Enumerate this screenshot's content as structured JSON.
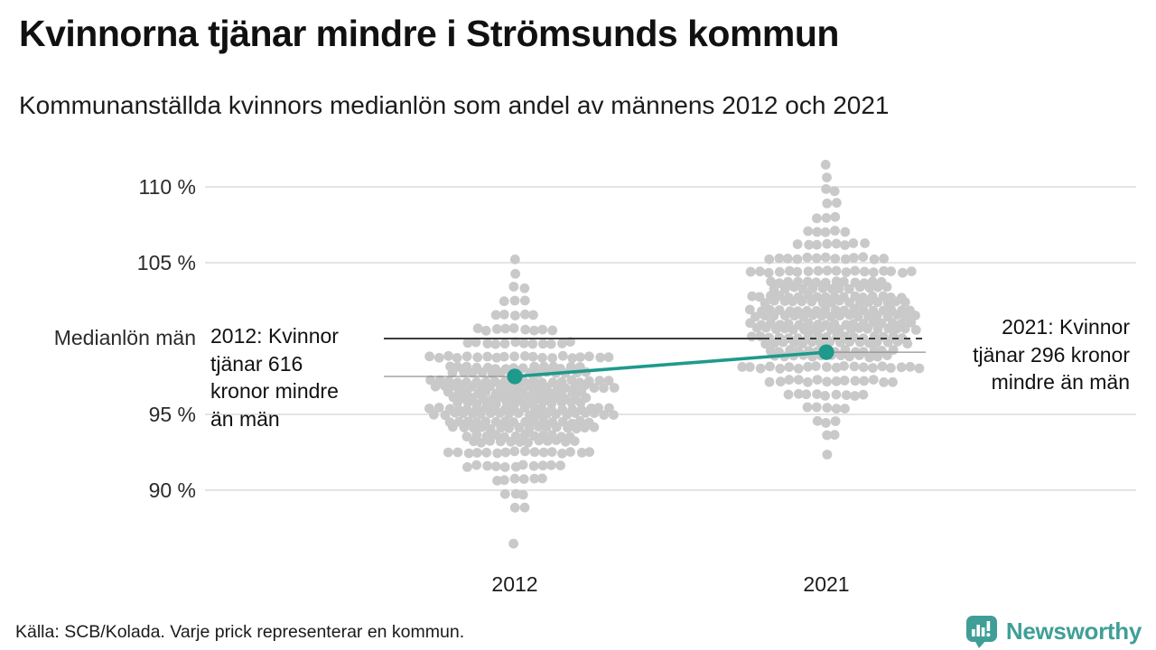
{
  "colors": {
    "highlight": "#1e9a8c",
    "dot": "#c9c9c9",
    "gridline": "#dcdcdc",
    "reference_line": "#3c3c3c",
    "leader_line": "#909090",
    "brand_teal": "#3f9f97",
    "text": "#111111"
  },
  "footer": {
    "brand": "Newsworthy"
  },
  "chart_data": {
    "type": "beeswarm",
    "title": "Kvinnorna tjänar mindre i Strömsunds kommun",
    "subtitle": "Kommunanställda kvinnors medianlön som andel av männens 2012 och 2021",
    "source": "Källa: SCB/Kolada. Varje prick representerar en kommun.",
    "categories": [
      "2012",
      "2021"
    ],
    "unit": "%",
    "ylim": [
      86,
      112
    ],
    "grid": true,
    "yticks": [
      {
        "value": 110,
        "label": "110 %"
      },
      {
        "value": 105,
        "label": "105 %"
      },
      {
        "value": 100,
        "label": "Medianlön män"
      },
      {
        "value": 95,
        "label": "95 %"
      },
      {
        "value": 90,
        "label": "90 %"
      }
    ],
    "reference_line": {
      "value": 100,
      "label": "Medianlön män"
    },
    "highlight": {
      "name": "Strömsunds kommun",
      "values": [
        {
          "year": "2012",
          "pct": 97.5
        },
        {
          "year": "2021",
          "pct": 99.1
        }
      ]
    },
    "annotations": [
      {
        "year": "2012",
        "align": "left",
        "text": "2012: Kvinnor\ntjänar 616\nkronor mindre\nän män"
      },
      {
        "year": "2021",
        "align": "right",
        "text": "2021: Kvinnor\ntjänar 296 kronor\nmindre än män"
      }
    ],
    "distributions": [
      {
        "year": "2012",
        "bins": [
          {
            "pct": 105.2,
            "count": 1
          },
          {
            "pct": 104.3,
            "count": 1
          },
          {
            "pct": 103.4,
            "count": 2
          },
          {
            "pct": 102.5,
            "count": 3
          },
          {
            "pct": 101.5,
            "count": 5
          },
          {
            "pct": 100.6,
            "count": 9
          },
          {
            "pct": 99.7,
            "count": 12
          },
          {
            "pct": 98.8,
            "count": 20
          },
          {
            "pct": 97.9,
            "count": 30
          },
          {
            "pct": 97.0,
            "count": 40
          },
          {
            "pct": 96.1,
            "count": 44
          },
          {
            "pct": 95.2,
            "count": 40
          },
          {
            "pct": 94.3,
            "count": 32
          },
          {
            "pct": 93.4,
            "count": 24
          },
          {
            "pct": 92.5,
            "count": 16
          },
          {
            "pct": 91.6,
            "count": 11
          },
          {
            "pct": 90.7,
            "count": 6
          },
          {
            "pct": 89.7,
            "count": 3
          },
          {
            "pct": 88.8,
            "count": 2
          },
          {
            "pct": 86.5,
            "count": 1
          }
        ]
      },
      {
        "year": "2021",
        "bins": [
          {
            "pct": 111.5,
            "count": 1
          },
          {
            "pct": 110.6,
            "count": 1
          },
          {
            "pct": 109.8,
            "count": 2
          },
          {
            "pct": 108.9,
            "count": 2
          },
          {
            "pct": 108.0,
            "count": 3
          },
          {
            "pct": 107.1,
            "count": 5
          },
          {
            "pct": 106.2,
            "count": 8
          },
          {
            "pct": 105.3,
            "count": 13
          },
          {
            "pct": 104.4,
            "count": 18
          },
          {
            "pct": 103.5,
            "count": 26
          },
          {
            "pct": 102.6,
            "count": 33
          },
          {
            "pct": 101.7,
            "count": 36
          },
          {
            "pct": 100.8,
            "count": 36
          },
          {
            "pct": 99.9,
            "count": 33
          },
          {
            "pct": 99.0,
            "count": 27
          },
          {
            "pct": 98.1,
            "count": 20
          },
          {
            "pct": 97.2,
            "count": 14
          },
          {
            "pct": 96.3,
            "count": 9
          },
          {
            "pct": 95.4,
            "count": 5
          },
          {
            "pct": 94.5,
            "count": 3
          },
          {
            "pct": 93.6,
            "count": 2
          },
          {
            "pct": 92.3,
            "count": 1
          }
        ]
      }
    ]
  }
}
